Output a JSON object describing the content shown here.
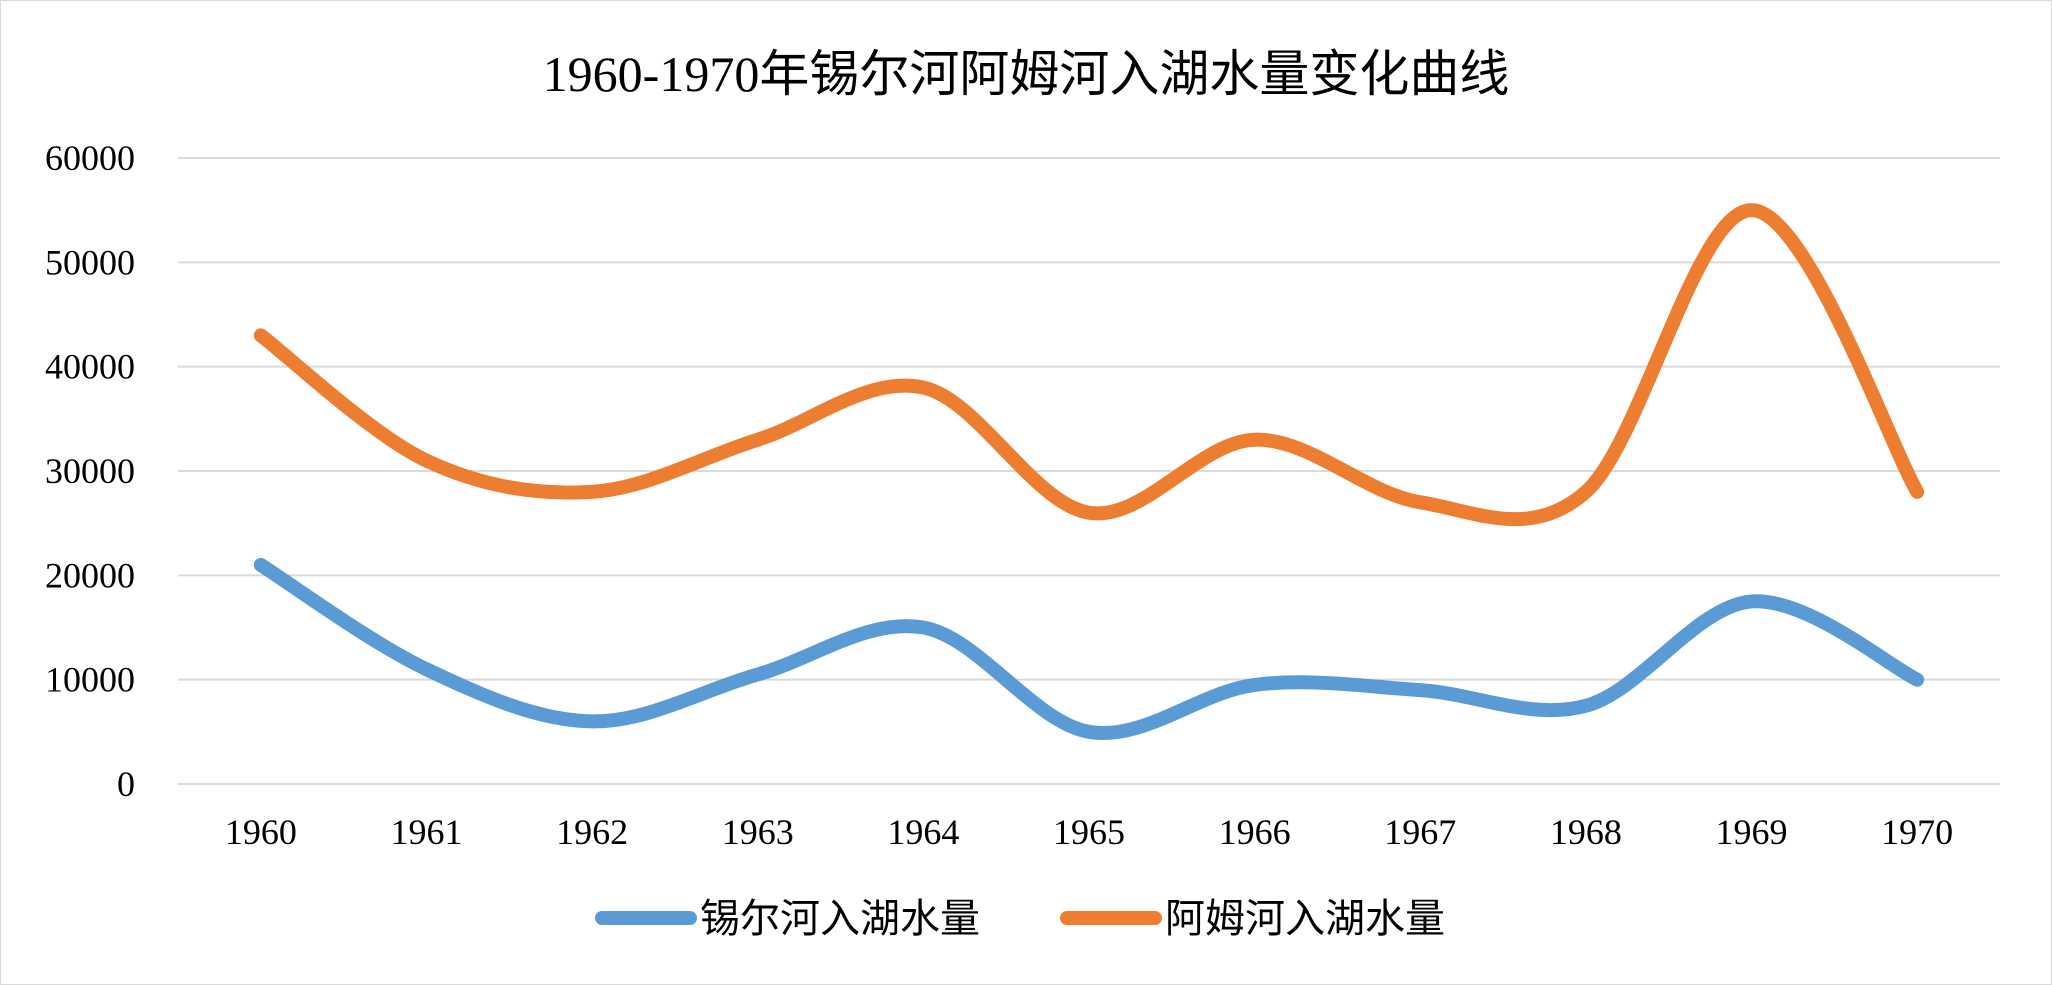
{
  "chart_data": {
    "type": "line",
    "title": "1960-1970年锡尔河阿姆河入湖水量变化曲线",
    "categories": [
      "1960",
      "1961",
      "1962",
      "1963",
      "1964",
      "1965",
      "1966",
      "1967",
      "1968",
      "1969",
      "1970"
    ],
    "series": [
      {
        "name": "锡尔河入湖水量",
        "color": "#5B9BD5",
        "values": [
          21000,
          11000,
          6000,
          10500,
          15000,
          5000,
          9500,
          9000,
          7500,
          17500,
          10000
        ]
      },
      {
        "name": "阿姆河入湖水量",
        "color": "#ED7D31",
        "values": [
          43000,
          31000,
          28000,
          33000,
          38000,
          26000,
          33000,
          27000,
          28000,
          55000,
          28000
        ]
      }
    ],
    "yticks": [
      "0",
      "10000",
      "20000",
      "30000",
      "40000",
      "50000",
      "60000"
    ],
    "ylim": [
      0,
      60000
    ],
    "grid": true,
    "smooth": true,
    "legend_position": "bottom"
  }
}
